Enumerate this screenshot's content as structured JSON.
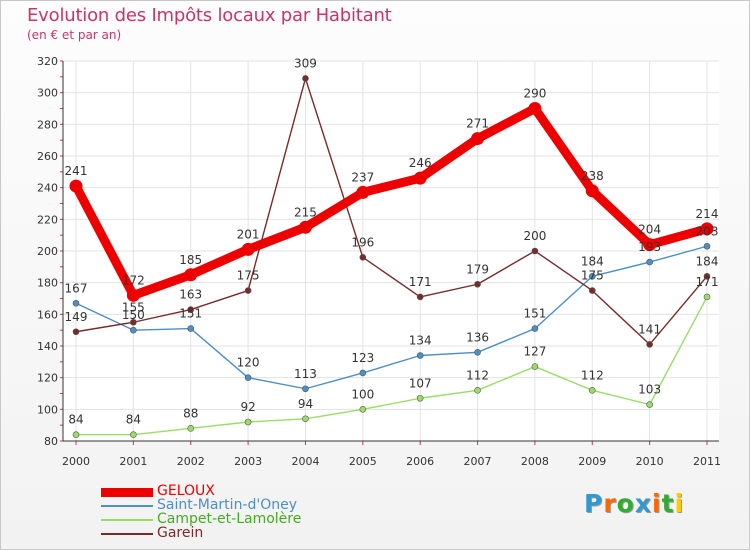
{
  "header": {
    "title": "Evolution des Impôts locaux par Habitant",
    "subtitle": "(en € et par an)"
  },
  "logo": {
    "text": "Proxiti",
    "colors": [
      "#3399cc",
      "#ff6600",
      "#33aa33",
      "#3399cc",
      "#ff6600",
      "#33aa33",
      "#ffcc00"
    ]
  },
  "chart_data": {
    "type": "line",
    "x": [
      "2000",
      "2001",
      "2002",
      "2003",
      "2004",
      "2005",
      "2006",
      "2007",
      "2008",
      "2009",
      "2010",
      "2011"
    ],
    "ylim": [
      80,
      320
    ],
    "yticks": [
      80,
      100,
      120,
      140,
      160,
      180,
      200,
      220,
      240,
      260,
      280,
      300,
      320
    ],
    "grid": true,
    "legend_position": "bottom-left",
    "series": [
      {
        "name": "GELOUX",
        "color": "#ee0000",
        "values": [
          241,
          172,
          185,
          201,
          215,
          237,
          246,
          271,
          290,
          238,
          204,
          214
        ]
      },
      {
        "name": "Saint-Martin-d'Oney",
        "color": "#4d8fc6",
        "values": [
          167,
          150,
          151,
          120,
          113,
          123,
          134,
          136,
          151,
          184,
          193,
          203
        ]
      },
      {
        "name": "Campet-et-Lamolère",
        "color": "#99dd66",
        "values": [
          84,
          84,
          88,
          92,
          94,
          100,
          107,
          112,
          127,
          112,
          103,
          171
        ]
      },
      {
        "name": "Garein",
        "color": "#7a2a2a",
        "values": [
          149,
          155,
          163,
          175,
          309,
          196,
          171,
          179,
          200,
          175,
          141,
          184
        ]
      }
    ]
  }
}
